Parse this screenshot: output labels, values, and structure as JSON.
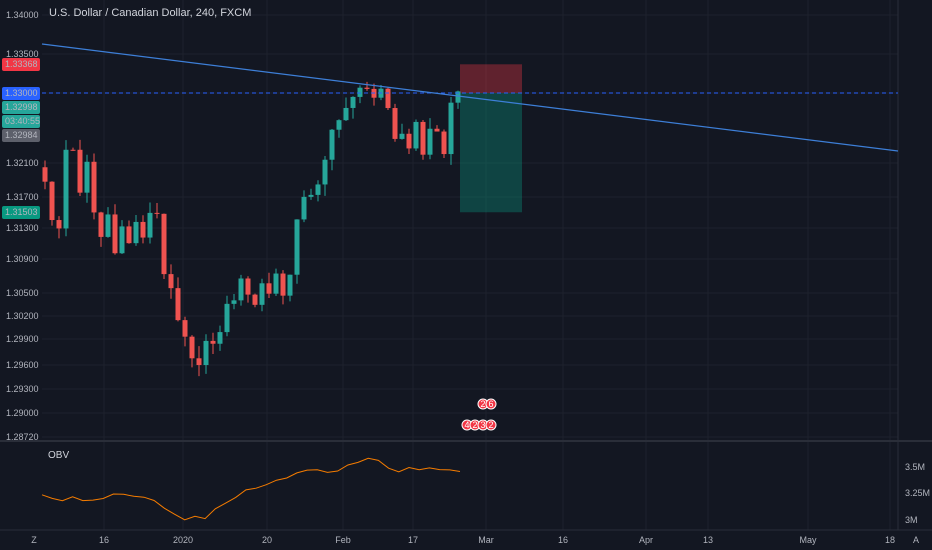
{
  "chart_title": "U.S. Dollar / Canadian Dollar, 240, FXCM",
  "chart_data": [
    {
      "type": "candlestick",
      "title": "U.S. Dollar / Canadian Dollar, 240, FXCM",
      "ylim": [
        1.2872,
        1.3402
      ],
      "y_ticks": [
        "1.34000",
        "1.33500",
        "1.33000",
        "1.32100",
        "1.31700",
        "1.31300",
        "1.30900",
        "1.30500",
        "1.30200",
        "1.29900",
        "1.29600",
        "1.29300",
        "1.29000",
        "1.28720"
      ],
      "x_ticks": [
        "Z",
        "16",
        "2020",
        "20",
        "Feb",
        "17",
        "Mar",
        "16",
        "Apr",
        "13",
        "May",
        "18",
        "A"
      ],
      "close_path": [
        1.3195,
        1.3135,
        1.3128,
        1.3228,
        1.3232,
        1.3168,
        1.3206,
        1.315,
        1.3118,
        1.3147,
        1.3108,
        1.313,
        1.3108,
        1.314,
        1.311,
        1.3153,
        1.315,
        1.3078,
        1.3045,
        1.301,
        1.2985,
        1.296,
        1.297,
        1.2985,
        1.2975,
        1.3005,
        1.303,
        1.3048,
        1.3058,
        1.3055,
        1.3038,
        1.306,
        1.3052,
        1.3075,
        1.3045,
        1.308,
        1.3138,
        1.316,
        1.3178,
        1.319,
        1.3208,
        1.3245,
        1.3262,
        1.329,
        1.3295,
        1.33,
        1.33,
        1.3303,
        1.3307,
        1.327,
        1.3232,
        1.3248,
        1.3232,
        1.3263,
        1.323,
        1.3245,
        1.3255,
        1.3225,
        1.3285,
        1.33
      ],
      "price_tags": [
        {
          "label": "1.33368",
          "color": "#f23645"
        },
        {
          "label": "1.33000",
          "color": "#2962ff"
        },
        {
          "label": "1.32998",
          "color": "#26a69a"
        },
        {
          "label": "03:40:55",
          "color": "#26a69a"
        },
        {
          "label": "1.32984",
          "color": "#5d606b"
        },
        {
          "label": "1.31503",
          "color": "#089981"
        }
      ],
      "horizontal_line": 1.33,
      "trend_line": {
        "color": "#3d7fd8"
      },
      "position_tool": {
        "entry": 1.33,
        "stop": 1.33368,
        "target": 1.31503
      },
      "event_badges": [
        "2",
        "6",
        "4",
        "2",
        "3",
        "2"
      ],
      "candle_colors": {
        "up": "#26a69a",
        "down": "#ef5350"
      }
    },
    {
      "type": "line",
      "title": "OBV",
      "y_ticks": [
        "3.5M",
        "3.25M",
        "3M"
      ],
      "ylim": [
        2.95,
        3.58
      ],
      "series": [
        {
          "name": "OBV",
          "color": "#f57c00",
          "values": [
            3.24,
            3.22,
            3.19,
            3.22,
            3.18,
            3.2,
            3.21,
            3.23,
            3.26,
            3.24,
            3.22,
            3.17,
            3.1,
            3.04,
            3.01,
            3.05,
            3.03,
            3.1,
            3.17,
            3.23,
            3.27,
            3.3,
            3.33,
            3.36,
            3.39,
            3.44,
            3.46,
            3.49,
            3.46,
            3.48,
            3.51,
            3.55,
            3.58,
            3.55,
            3.5,
            3.46,
            3.48,
            3.46,
            3.49,
            3.46,
            3.48,
            3.47
          ]
        }
      ]
    }
  ]
}
